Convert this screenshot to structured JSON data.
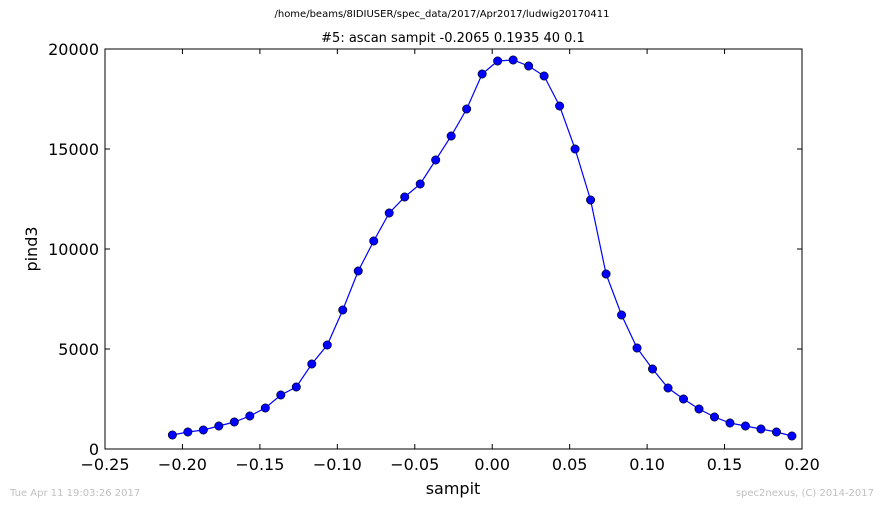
{
  "header": {
    "file_path": "/home/beams/8IDIUSER/spec_data/2017/Apr2017/ludwig20170411"
  },
  "footer": {
    "timestamp": "Tue Apr 11 19:03:26 2017",
    "credit": "spec2nexus, (C) 2014-2017"
  },
  "chart_data": {
    "type": "line",
    "title": "#5: ascan  sampit -0.2065 0.1935  40 0.1",
    "xlabel": "sampit",
    "ylabel": "pind3",
    "xlim": [
      -0.25,
      0.2
    ],
    "ylim": [
      0,
      20000
    ],
    "xticks": [
      "−0.25",
      "−0.20",
      "−0.15",
      "−0.10",
      "−0.05",
      "0.00",
      "0.05",
      "0.10",
      "0.15",
      "0.20"
    ],
    "yticks": [
      "0",
      "5000",
      "10000",
      "15000",
      "20000"
    ],
    "grid": false,
    "marker": "circle",
    "series_color": "#0000ff",
    "x": [
      -0.2065,
      -0.1965,
      -0.1865,
      -0.1765,
      -0.1665,
      -0.1565,
      -0.1465,
      -0.1365,
      -0.1265,
      -0.1165,
      -0.1065,
      -0.0965,
      -0.0865,
      -0.0765,
      -0.0665,
      -0.0565,
      -0.0465,
      -0.0365,
      -0.0265,
      -0.0165,
      -0.0065,
      0.0035,
      0.0135,
      0.0235,
      0.0335,
      0.0435,
      0.0535,
      0.0635,
      0.0735,
      0.0835,
      0.0935,
      0.1035,
      0.1135,
      0.1235,
      0.1335,
      0.1435,
      0.1535,
      0.1635,
      0.1735,
      0.1835,
      0.1935
    ],
    "y": [
      700,
      850,
      950,
      1150,
      1350,
      1650,
      2050,
      2700,
      3100,
      4250,
      5200,
      6950,
      8900,
      10400,
      11800,
      12600,
      13250,
      14450,
      15650,
      17000,
      18750,
      19400,
      19450,
      19150,
      18650,
      17150,
      15000,
      12450,
      8750,
      6700,
      5050,
      4000,
      3050,
      2500,
      2000,
      1600,
      1300,
      1150,
      1000,
      850,
      650
    ]
  }
}
